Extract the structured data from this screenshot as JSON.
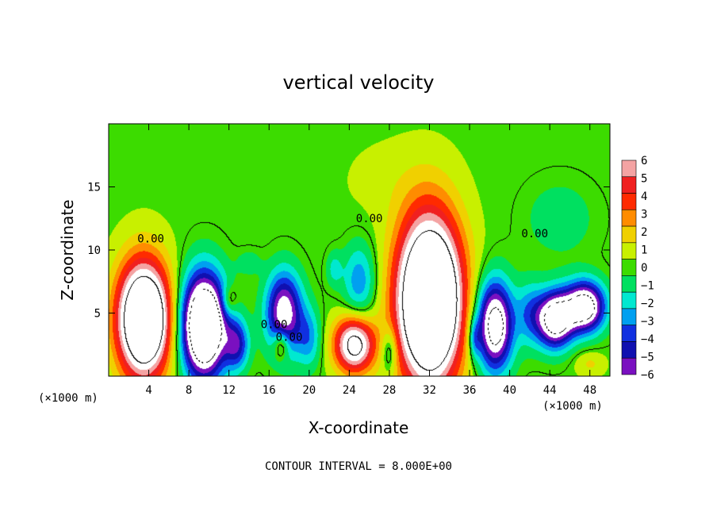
{
  "chart_data": {
    "type": "heatmap",
    "title": "vertical velocity",
    "xlabel": "X-coordinate",
    "ylabel": "Z-coordinate",
    "x_unit": "(×1000 m)",
    "x_unit_right": "(×1000 m)",
    "xlim": [
      0,
      50
    ],
    "ylim": [
      0,
      20
    ],
    "x_ticks": [
      4,
      8,
      12,
      16,
      20,
      24,
      28,
      32,
      36,
      40,
      44,
      48
    ],
    "y_ticks": [
      5,
      10,
      15
    ],
    "colorbar": {
      "levels": [
        6,
        5,
        4,
        3,
        2,
        1,
        0,
        -1,
        -2,
        -3,
        -4,
        -5,
        -6
      ],
      "labels": [
        "6",
        "5",
        "4",
        "3",
        "2",
        "1",
        "0",
        "−1",
        "−2",
        "−3",
        "−4",
        "−5",
        "−6"
      ],
      "colors": [
        "#f4a3a3",
        "#f02020",
        "#ff2a00",
        "#ff8c00",
        "#f0d000",
        "#c8f000",
        "#3cdc00",
        "#00e060",
        "#00e8d0",
        "#00a0f0",
        "#1030e0",
        "#1010b0",
        "#7a10c0"
      ],
      "saturation_color": "#ffffff"
    },
    "contour_interval_text": "CONTOUR INTERVAL = 8.000E+00",
    "contour_labels": [
      "0.00",
      "0.00",
      "0.00",
      "0.00",
      "0.00"
    ],
    "grid": false,
    "legend": "colorbar-right",
    "field": {
      "background": 0.2,
      "cells": [
        {
          "x": 3.5,
          "z": 4.5,
          "rx": 2.6,
          "rz": 4.5,
          "amp": 14
        },
        {
          "x": 9.5,
          "z": 4.0,
          "rx": 2.2,
          "rz": 4.0,
          "amp": -14
        },
        {
          "x": 12.8,
          "z": 2.5,
          "rx": 1.2,
          "rz": 2.0,
          "amp": -5
        },
        {
          "x": 12.0,
          "z": 6.0,
          "rx": 0.8,
          "rz": 1.2,
          "amp": 2.5
        },
        {
          "x": 17.5,
          "z": 5.0,
          "rx": 1.8,
          "rz": 3.2,
          "amp": -8
        },
        {
          "x": 17.2,
          "z": 2.5,
          "rx": 0.8,
          "rz": 1.2,
          "amp": 4
        },
        {
          "x": 20.0,
          "z": 3.0,
          "rx": 1.2,
          "rz": 2.4,
          "amp": -3
        },
        {
          "x": 24.5,
          "z": 2.5,
          "rx": 2.0,
          "rz": 2.2,
          "amp": 9
        },
        {
          "x": 25.0,
          "z": 7.5,
          "rx": 1.6,
          "rz": 3.0,
          "amp": -3.5
        },
        {
          "x": 22.5,
          "z": 8.5,
          "rx": 0.8,
          "rz": 1.4,
          "amp": -2
        },
        {
          "x": 28.0,
          "z": 2.0,
          "rx": 0.8,
          "rz": 1.8,
          "amp": -3
        },
        {
          "x": 32.0,
          "z": 6.0,
          "rx": 3.2,
          "rz": 6.5,
          "amp": 16
        },
        {
          "x": 36.5,
          "z": 3.0,
          "rx": 0.6,
          "rz": 1.6,
          "amp": -3
        },
        {
          "x": 38.5,
          "z": 4.0,
          "rx": 1.8,
          "rz": 3.5,
          "amp": -10
        },
        {
          "x": 42.0,
          "z": 5.0,
          "rx": 1.4,
          "rz": 2.5,
          "amp": -3
        },
        {
          "x": 44.5,
          "z": 4.5,
          "rx": 1.8,
          "rz": 2.2,
          "amp": -10
        },
        {
          "x": 47.5,
          "z": 5.5,
          "rx": 2.0,
          "rz": 2.0,
          "amp": -10
        },
        {
          "x": 45.0,
          "z": 12.5,
          "rx": 3.5,
          "rz": 3.0,
          "amp": -1.4
        },
        {
          "x": 28.0,
          "z": 15.5,
          "rx": 5.0,
          "rz": 3.5,
          "amp": 0.6
        },
        {
          "x": 48.0,
          "z": 1.0,
          "rx": 1.5,
          "rz": 1.0,
          "amp": 1.5
        },
        {
          "x": 14.0,
          "z": 9.0,
          "rx": 1.2,
          "rz": 1.0,
          "amp": -1.3
        }
      ]
    }
  }
}
